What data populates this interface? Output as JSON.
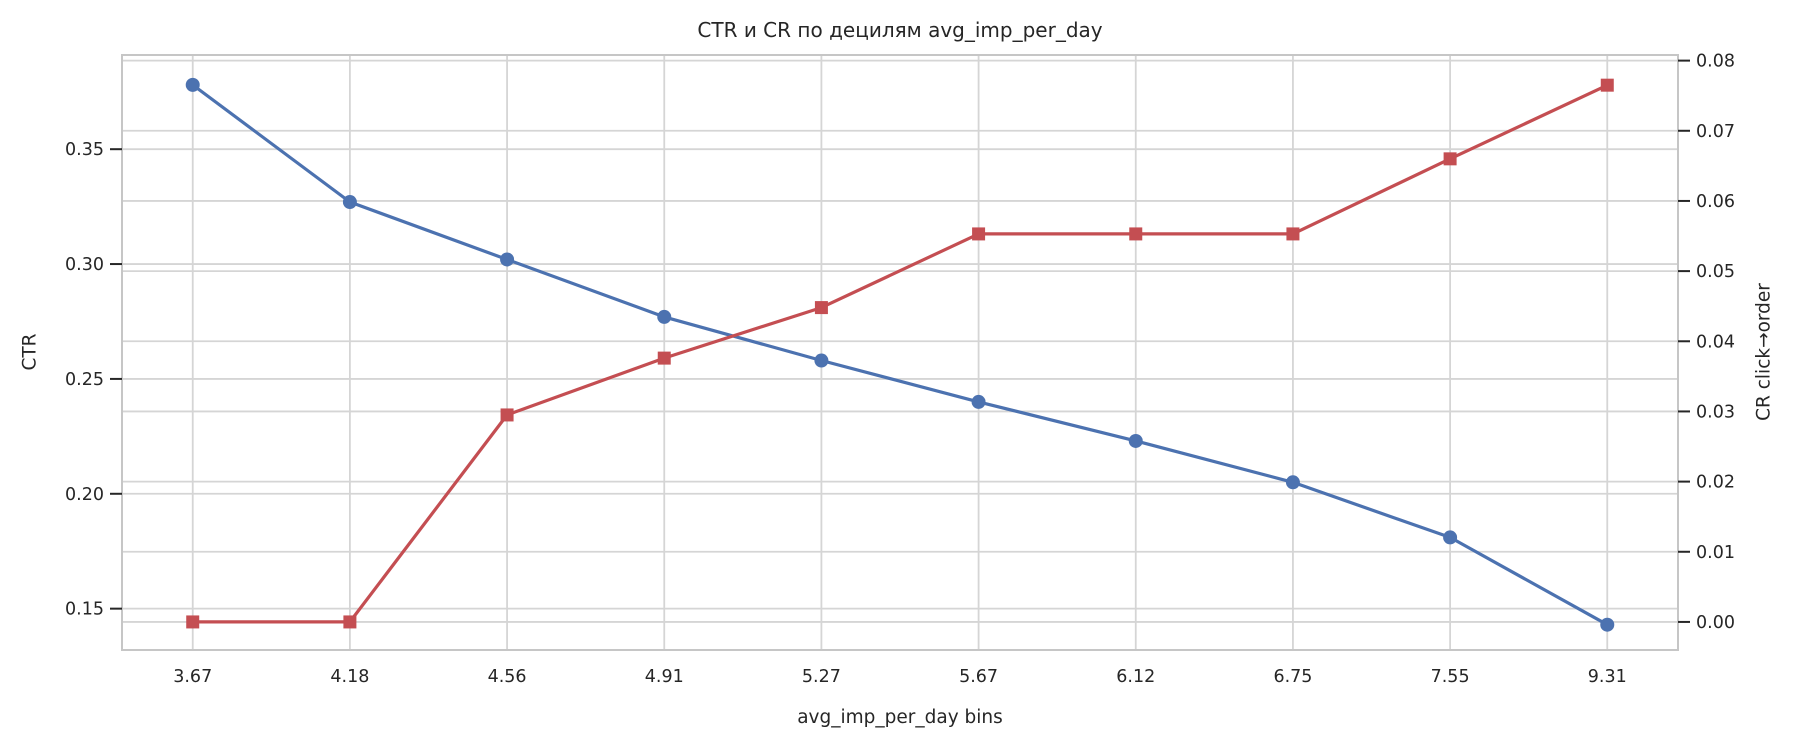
{
  "figure": {
    "background": "#ffffff",
    "text_color": "#262626",
    "grid_color": "#d5d5d5",
    "spine_color": "#c6c6c6",
    "ctr_line_color": "#4c72b0",
    "cr_line_color": "#c44e52"
  },
  "chart_data": {
    "type": "line",
    "title": "CTR и CR по децилям avg_imp_per_day",
    "xlabel": "avg_imp_per_day bins",
    "ylabel_left": "CTR",
    "ylabel_right": "CR click→order",
    "categories": [
      "3.67",
      "4.18",
      "4.56",
      "4.91",
      "5.27",
      "5.67",
      "6.12",
      "6.75",
      "7.55",
      "9.31"
    ],
    "series": [
      {
        "name": "CTR",
        "axis": "left",
        "color": "#4c72b0",
        "marker": "circle",
        "values": [
          0.378,
          0.327,
          0.302,
          0.277,
          0.258,
          0.24,
          0.223,
          0.205,
          0.181,
          0.143
        ]
      },
      {
        "name": "CR click→order",
        "axis": "right",
        "color": "#c44e52",
        "marker": "square",
        "values": [
          0.0,
          0.0,
          0.0295,
          0.0376,
          0.0448,
          0.0553,
          0.0553,
          0.0553,
          0.066,
          0.0765
        ]
      }
    ],
    "left_axis": {
      "label": "CTR",
      "tick_labels": [
        "0.15",
        "0.20",
        "0.25",
        "0.30",
        "0.35"
      ],
      "tick_values": [
        0.15,
        0.2,
        0.25,
        0.3,
        0.35
      ],
      "range": [
        0.132,
        0.391
      ]
    },
    "right_axis": {
      "label": "CR click→order",
      "tick_labels": [
        "0.00",
        "0.01",
        "0.02",
        "0.03",
        "0.04",
        "0.05",
        "0.06",
        "0.07",
        "0.08"
      ],
      "tick_values": [
        0.0,
        0.01,
        0.02,
        0.03,
        0.04,
        0.05,
        0.06,
        0.07,
        0.08
      ],
      "range": [
        -0.004,
        0.0808
      ]
    },
    "x_index_range": [
      -0.45,
      9.45
    ],
    "grid": true,
    "legend": false
  }
}
